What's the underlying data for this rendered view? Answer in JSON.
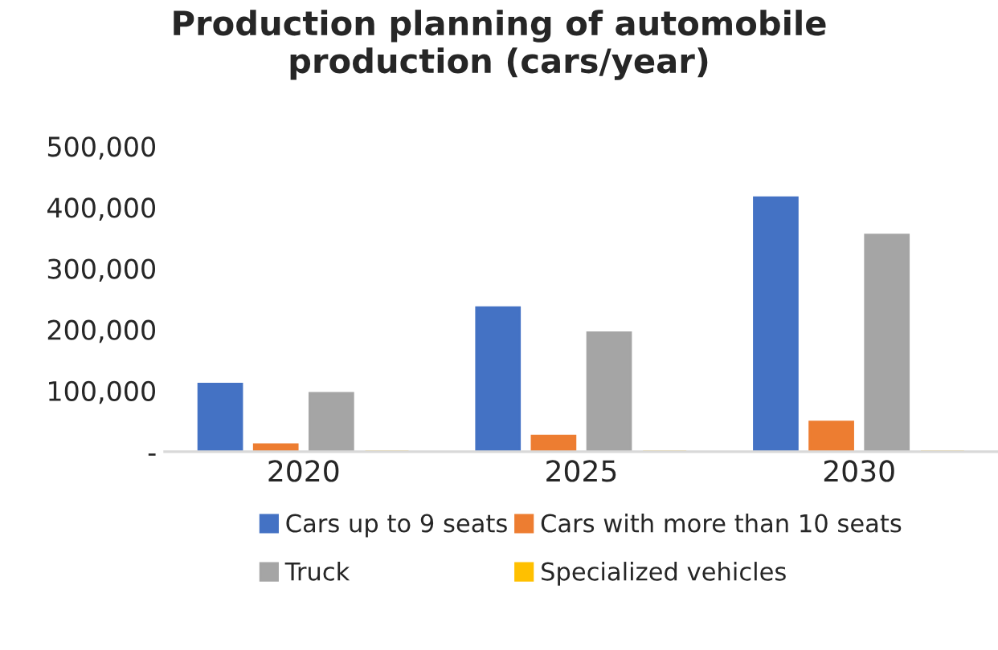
{
  "chart_data": {
    "type": "bar",
    "title": "Production planning of automobile\nproduction (cars/year)",
    "categories": [
      "2020",
      "2025",
      "2030"
    ],
    "series": [
      {
        "name": "Cars up to 9 seats",
        "color": "#4472c4",
        "values": [
          111000,
          236000,
          416000
        ]
      },
      {
        "name": "Cars with more than 10 seats",
        "color": "#ed7d31",
        "values": [
          12000,
          26000,
          49000
        ]
      },
      {
        "name": "Truck",
        "color": "#a5a5a5",
        "values": [
          96000,
          195000,
          355000
        ]
      },
      {
        "name": "Specialized vehicles",
        "color": "#ffc000",
        "values": [
          0,
          0,
          0
        ]
      }
    ],
    "ylim": [
      0,
      500000
    ],
    "yticks": [
      {
        "value": 0,
        "label": "-"
      },
      {
        "value": 100000,
        "label": "100,000"
      },
      {
        "value": 200000,
        "label": "200,000"
      },
      {
        "value": 300000,
        "label": "300,000"
      },
      {
        "value": 400000,
        "label": "400,000"
      },
      {
        "value": 500000,
        "label": "500,000"
      }
    ],
    "grid": false,
    "legend": "bottom"
  }
}
